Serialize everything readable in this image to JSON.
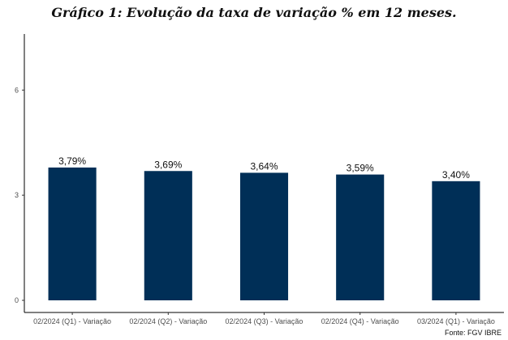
{
  "chart_data": {
    "type": "bar",
    "title": "Gráfico 1: Evolução da taxa de variação % em 12 meses.",
    "categories": [
      "02/2024 (Q1) - Variação",
      "02/2024 (Q2) - Variação",
      "02/2024 (Q3) - Variação",
      "02/2024 (Q4) - Variação",
      "03/2024 (Q1) - Variação"
    ],
    "values": [
      3.79,
      3.69,
      3.64,
      3.59,
      3.4
    ],
    "data_labels": [
      "3,79%",
      "3,69%",
      "3,64%",
      "3,59%",
      "3,40%"
    ],
    "y_ticks": [
      0,
      3,
      6
    ],
    "y_tick_labels": [
      "0",
      "3",
      "6"
    ],
    "ylim": [
      0,
      7.6
    ],
    "xlabel": "",
    "ylabel": "",
    "grid": false,
    "bar_color": "#002f57",
    "source": "Fonte: FGV IBRE"
  }
}
